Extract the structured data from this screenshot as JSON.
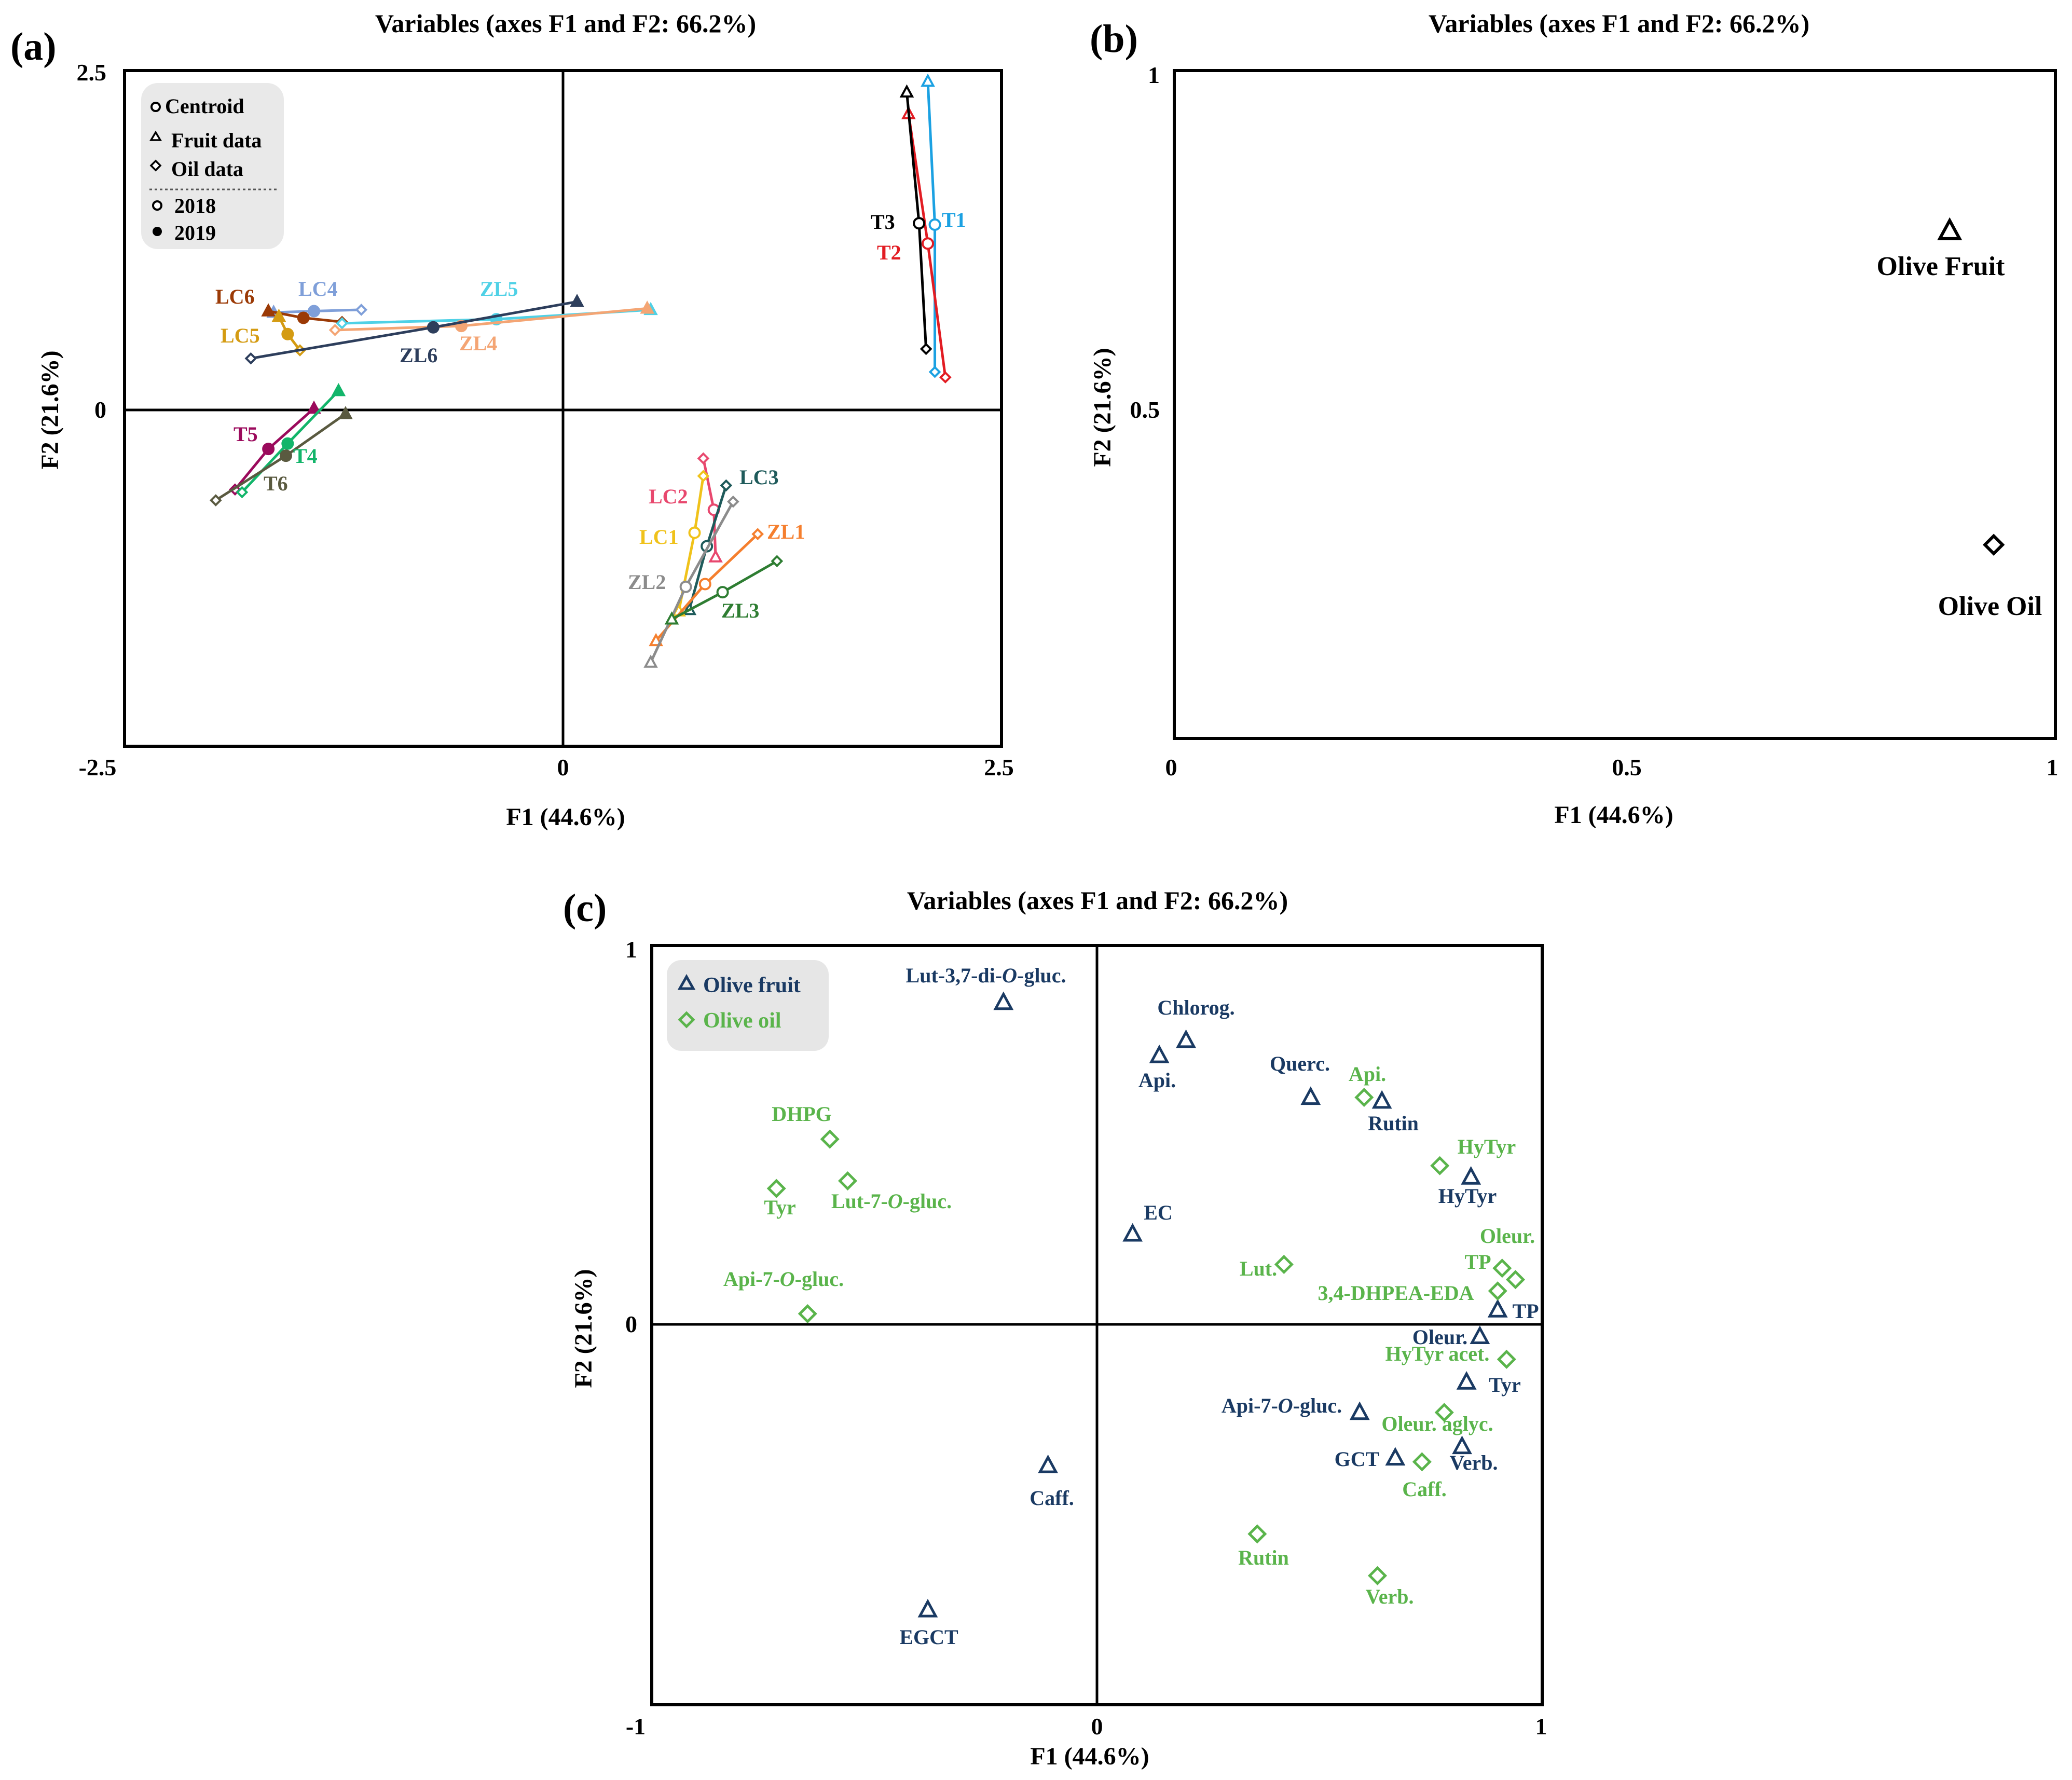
{
  "panel_a": {
    "label": "(a)",
    "title": "Variables (axes F1 and F2: 66.2%)",
    "xlabel": "F1 (44.6%)",
    "ylabel": "F2 (21.6%)",
    "xlim": [
      -2.5,
      2.5
    ],
    "ylim": [
      -2.5,
      2.5
    ],
    "xticks": [
      "-2.5",
      "0",
      "2.5"
    ],
    "yticks": [
      "2.5",
      "0"
    ],
    "legend": {
      "centroid": "Centroid",
      "fruit": "Fruit data",
      "oil": "Oil data",
      "y2018": "2018",
      "y2019": "2019"
    }
  },
  "panel_b": {
    "label": "(b)",
    "title": "Variables (axes F1 and F2: 66.2%)",
    "xlabel": "F1 (44.6%)",
    "ylabel": "F2 (21.6%)",
    "xticks": [
      "0",
      "0.5",
      "1"
    ],
    "yticks": [
      "1",
      "0.5"
    ],
    "xlim": [
      0,
      1
    ],
    "ylim": [
      0,
      1
    ],
    "points": [
      {
        "label": "Olive Fruit",
        "x": 0.88,
        "y": 0.76,
        "marker": "triangle"
      },
      {
        "label": "Olive Oil",
        "x": 0.93,
        "y": 0.29,
        "marker": "diamond"
      }
    ]
  },
  "panel_c": {
    "label": "(c)",
    "title": "Variables (axes F1 and F2: 66.2%)",
    "xlabel": "F1 (44.6%)",
    "ylabel": "F2 (21.6%)",
    "xticks": [
      "-1",
      "0",
      "1"
    ],
    "yticks": [
      "1",
      "0"
    ],
    "xlim": [
      -1,
      1
    ],
    "ylim": [
      -1,
      1
    ],
    "legend": {
      "fruit": "Olive fruit",
      "oil": "Olive oil"
    }
  },
  "chart_data": [
    {
      "type": "scatter",
      "title": "Variables (axes F1 and F2: 66.2%)",
      "xlabel": "F1 (44.6%)",
      "ylabel": "F2 (21.6%)",
      "xlim": [
        -2.5,
        2.5
      ],
      "ylim": [
        -2.5,
        2.5
      ],
      "groups": [
        {
          "name": "T1",
          "color": "#1ba1e2",
          "centroid2018": [
            2.12,
            1.36
          ],
          "fruit2018": [
            2.08,
            2.42
          ],
          "oil2018": [
            2.12,
            0.27
          ]
        },
        {
          "name": "T2",
          "color": "#e21c23",
          "centroid2018": [
            2.08,
            1.22
          ],
          "fruit2018": [
            1.97,
            2.18
          ],
          "oil2018": [
            2.18,
            0.23
          ]
        },
        {
          "name": "T3",
          "color": "#000000",
          "centroid2018": [
            2.03,
            1.37
          ],
          "fruit2018": [
            1.96,
            2.34
          ],
          "oil2018": [
            2.07,
            0.44
          ]
        },
        {
          "name": "LC4",
          "color": "#7f9fd9",
          "centroid2019": [
            -1.42,
            0.72
          ],
          "fruit2019": [
            -1.65,
            0.71
          ],
          "oil2018": [
            -1.15,
            0.73
          ]
        },
        {
          "name": "LC6",
          "color": "#9b3a06",
          "centroid2019": [
            -1.48,
            0.67
          ],
          "fruit2019": [
            -1.68,
            0.72
          ],
          "oil2018": [
            -1.26,
            0.64
          ]
        },
        {
          "name": "LC5",
          "color": "#d49b12",
          "centroid2019": [
            -1.57,
            0.55
          ],
          "fruit2019": [
            -1.62,
            0.68
          ],
          "oil2018": [
            -1.5,
            0.43
          ]
        },
        {
          "name": "ZL5",
          "color": "#4fd1e6",
          "centroid2019": [
            -0.38,
            0.66
          ],
          "fruit2019": [
            0.5,
            0.73
          ],
          "oil2018": [
            -1.26,
            0.63
          ]
        },
        {
          "name": "ZL4",
          "color": "#f4a574",
          "centroid2019": [
            -0.58,
            0.61
          ],
          "fruit2019": [
            0.48,
            0.74
          ],
          "oil2018": [
            -1.3,
            0.58
          ]
        },
        {
          "name": "ZL6",
          "color": "#2d3e5c",
          "centroid2019": [
            -0.74,
            0.6
          ],
          "fruit2019": [
            0.08,
            0.79
          ],
          "oil2018": [
            -1.78,
            0.37
          ]
        },
        {
          "name": "T5",
          "color": "#9b0a5c",
          "centroid2019": [
            -1.68,
            -0.3
          ],
          "fruit2019": [
            -1.42,
            0.0
          ],
          "oil2018": [
            -1.87,
            -0.6
          ]
        },
        {
          "name": "T4",
          "color": "#12b56a",
          "centroid2019": [
            -1.57,
            -0.26
          ],
          "fruit2019": [
            -1.28,
            0.13
          ],
          "oil2018": [
            -1.83,
            -0.62
          ]
        },
        {
          "name": "T6",
          "color": "#5a5a40",
          "centroid2019": [
            -1.58,
            -0.35
          ],
          "fruit2019": [
            -1.24,
            -0.04
          ],
          "oil2018": [
            -1.98,
            -0.68
          ]
        },
        {
          "name": "LC2",
          "color": "#e8486e",
          "centroid2018": [
            0.86,
            -0.75
          ],
          "fruit2018": [
            0.87,
            -1.1
          ],
          "oil2018": [
            0.8,
            -0.37
          ]
        },
        {
          "name": "LC3",
          "color": "#1f5b5b",
          "centroid2018": [
            0.82,
            -1.02
          ],
          "fruit2018": [
            0.72,
            -1.49
          ],
          "oil2018": [
            0.93,
            -0.57
          ]
        },
        {
          "name": "LC1",
          "color": "#f0c21a",
          "centroid2018": [
            0.75,
            -0.92
          ],
          "fruit2018": [
            0.66,
            -1.5
          ],
          "oil2018": [
            0.8,
            -0.5
          ]
        },
        {
          "name": "ZL1",
          "color": "#f57f2e",
          "centroid2018": [
            0.81,
            -1.3
          ],
          "fruit2018": [
            0.53,
            -1.72
          ],
          "oil2018": [
            1.11,
            -0.93
          ]
        },
        {
          "name": "ZL2",
          "color": "#8c8c8c",
          "centroid2018": [
            0.7,
            -1.32
          ],
          "fruit2018": [
            0.5,
            -1.88
          ],
          "oil2018": [
            0.97,
            -0.69
          ]
        },
        {
          "name": "ZL3",
          "color": "#2e7d32",
          "centroid2018": [
            0.91,
            -1.36
          ],
          "fruit2018": [
            0.62,
            -1.56
          ],
          "oil2018": [
            1.22,
            -1.13
          ]
        }
      ]
    },
    {
      "type": "scatter",
      "title": "Variables (axes F1 and F2: 66.2%)",
      "xlabel": "F1 (44.6%)",
      "ylabel": "F2 (21.6%)",
      "xlim": [
        0,
        1
      ],
      "ylim": [
        0,
        1
      ],
      "series": [
        {
          "name": "Olive Fruit",
          "x": [
            0.88
          ],
          "y": [
            0.76
          ]
        },
        {
          "name": "Olive Oil",
          "x": [
            0.93
          ],
          "y": [
            0.29
          ]
        }
      ]
    },
    {
      "type": "scatter",
      "title": "Variables (axes F1 and F2: 66.2%)",
      "xlabel": "F1 (44.6%)",
      "ylabel": "F2 (21.6%)",
      "xlim": [
        -1,
        1
      ],
      "ylim": [
        -1,
        1
      ],
      "series": [
        {
          "name": "Olive fruit",
          "color": "#1a3a63",
          "points": [
            {
              "label": "Lut-3,7-di-O-gluc.",
              "x": -0.21,
              "y": 0.85
            },
            {
              "label": "Chlorog.",
              "x": 0.2,
              "y": 0.75
            },
            {
              "label": "Api.",
              "x": 0.14,
              "y": 0.71
            },
            {
              "label": "Querc.",
              "x": 0.48,
              "y": 0.6
            },
            {
              "label": "Rutin",
              "x": 0.64,
              "y": 0.59
            },
            {
              "label": "HyTyr",
              "x": 0.84,
              "y": 0.39
            },
            {
              "label": "EC",
              "x": 0.08,
              "y": 0.24
            },
            {
              "label": "TP",
              "x": 0.9,
              "y": 0.04
            },
            {
              "label": "Oleur.",
              "x": 0.86,
              "y": -0.03
            },
            {
              "label": "Tyr",
              "x": 0.83,
              "y": -0.15
            },
            {
              "label": "Api-7-O-gluc.",
              "x": 0.59,
              "y": -0.23
            },
            {
              "label": "Verb.",
              "x": 0.82,
              "y": -0.32
            },
            {
              "label": "GCT",
              "x": 0.67,
              "y": -0.35
            },
            {
              "label": "Caff.",
              "x": -0.11,
              "y": -0.37
            },
            {
              "label": "EGCT",
              "x": -0.38,
              "y": -0.75
            }
          ]
        },
        {
          "name": "Olive oil",
          "color": "#5ab44b",
          "points": [
            {
              "label": "DHPG",
              "x": -0.6,
              "y": 0.49
            },
            {
              "label": "Tyr",
              "x": -0.72,
              "y": 0.36
            },
            {
              "label": "Lut-7-O-gluc.",
              "x": -0.56,
              "y": 0.38
            },
            {
              "label": "Api-7-O-gluc.",
              "x": -0.65,
              "y": 0.03
            },
            {
              "label": "Api.",
              "x": 0.6,
              "y": 0.6
            },
            {
              "label": "HyTyr",
              "x": 0.77,
              "y": 0.42
            },
            {
              "label": "Lut.",
              "x": 0.42,
              "y": 0.16
            },
            {
              "label": "Oleur.",
              "x": 0.94,
              "y": 0.12
            },
            {
              "label": "TP",
              "x": 0.91,
              "y": 0.15
            },
            {
              "label": "3,4-DHPEA-EDA",
              "x": 0.9,
              "y": 0.09
            },
            {
              "label": "HyTyr acet.",
              "x": 0.92,
              "y": -0.09
            },
            {
              "label": "Oleur. aglyc.",
              "x": 0.78,
              "y": -0.23
            },
            {
              "label": "Caff.",
              "x": 0.73,
              "y": -0.36
            },
            {
              "label": "Rutin",
              "x": 0.36,
              "y": -0.55
            },
            {
              "label": "Verb.",
              "x": 0.63,
              "y": -0.66
            }
          ]
        }
      ]
    }
  ]
}
